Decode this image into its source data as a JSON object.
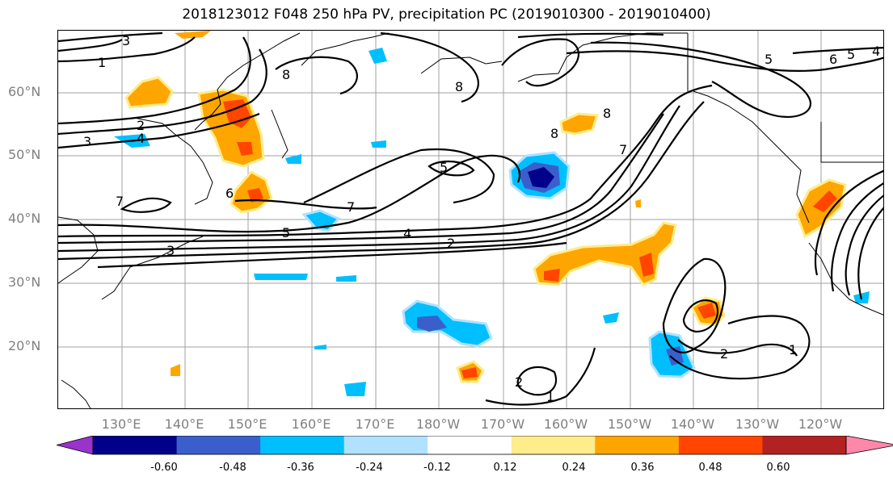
{
  "title": "2018123012 F048 250 hPa PV, precipitation PC (2019010300 - 2019010400)",
  "lat_labels": [
    "60°N",
    "50°N",
    "40°N",
    "30°N",
    "20°N"
  ],
  "lon_labels": [
    "130°E",
    "140°E",
    "150°E",
    "160°E",
    "170°E",
    "180°W",
    "170°W",
    "160°W",
    "150°W",
    "140°W",
    "130°W",
    "120°W"
  ],
  "colorbar": {
    "colors": [
      "#9933cc",
      "#00008b",
      "#3a5fcd",
      "#00bfff",
      "#b0e2ff",
      "#ffffff",
      "#ffec8b",
      "#ffa500",
      "#ff4500",
      "#b22222",
      "#ff88aa"
    ],
    "tick_labels": [
      "-0.60",
      "-0.48",
      "-0.36",
      "-0.24",
      "-0.12",
      "0.12",
      "0.24",
      "0.36",
      "0.48",
      "0.60"
    ]
  },
  "contour_labels": [
    "1",
    "1",
    "1",
    "2",
    "2",
    "2",
    "2",
    "3",
    "3",
    "3",
    "4",
    "4",
    "4",
    "5",
    "5",
    "5",
    "5",
    "6",
    "6",
    "7",
    "7",
    "7",
    "8",
    "8",
    "8",
    "8"
  ]
}
